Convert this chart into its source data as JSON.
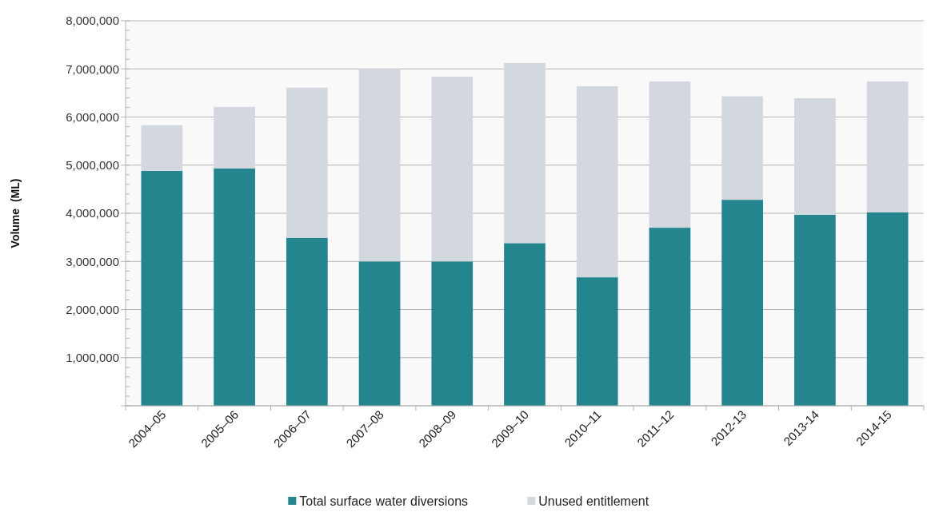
{
  "chart_data": {
    "type": "bar",
    "stacked": true,
    "ylabel": "Volume  (ML)",
    "categories": [
      "2004–05",
      "2005–06",
      "2006–07",
      "2007–08",
      "2008–09",
      "2009–10",
      "2010–11",
      "2011–12",
      "2012-13",
      "2013-14",
      "2014-15"
    ],
    "series": [
      {
        "name": "Total surface water diversions",
        "color": "#24858f",
        "values": [
          4880000,
          4930000,
          3490000,
          3000000,
          3000000,
          3380000,
          2670000,
          3700000,
          4280000,
          3970000,
          4020000
        ]
      },
      {
        "name": "Unused entitlement",
        "color": "#d3d8df",
        "values": [
          950000,
          1280000,
          3120000,
          4000000,
          3840000,
          3740000,
          3970000,
          3040000,
          2150000,
          2420000,
          2720000
        ]
      }
    ],
    "ylim": [
      0,
      8000000
    ],
    "yticks": [
      {
        "value": 0,
        "label": null
      },
      {
        "value": 1000000,
        "label": "1,000,000"
      },
      {
        "value": 2000000,
        "label": "2,000,000"
      },
      {
        "value": 3000000,
        "label": "3,000,000"
      },
      {
        "value": 4000000,
        "label": "4,000,000"
      },
      {
        "value": 5000000,
        "label": "5,000,000"
      },
      {
        "value": 6000000,
        "label": "6,000,000"
      },
      {
        "value": 7000000,
        "label": "7,000,000"
      },
      {
        "value": 8000000,
        "label": "8,000,000"
      }
    ],
    "grid": "y",
    "legend": "bottom"
  }
}
